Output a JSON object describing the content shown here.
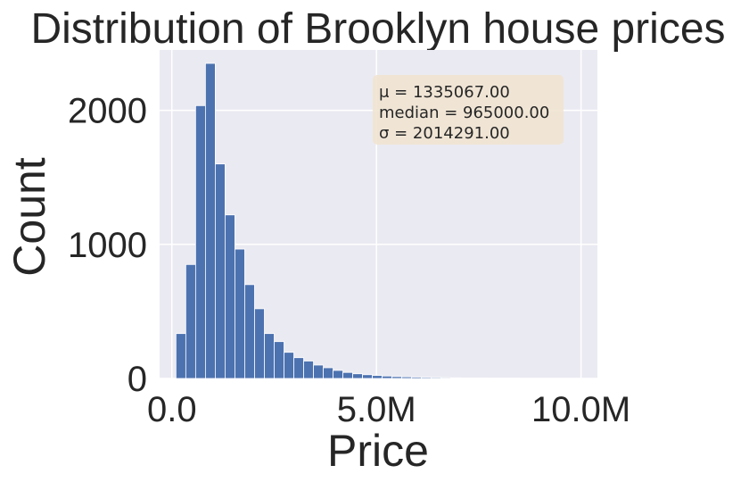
{
  "colors": {
    "plot_background": "#eaeaf2",
    "bar_fill": "#4c72b0",
    "grid": "#ffffff",
    "stats_box_fill": "#f1e4d1",
    "text": "#262626"
  },
  "stats_box": {
    "line1": "μ = 1335067.00",
    "line2": "median = 965000.00",
    "line3": "σ = 2014291.00"
  },
  "chart_data": {
    "type": "bar",
    "title": "Distribution of Brooklyn house prices",
    "xlabel": "Price",
    "ylabel": "Count",
    "xlim": [
      -300000,
      10400000
    ],
    "ylim": [
      0,
      2450
    ],
    "x_ticks": [
      0,
      5000000,
      10000000
    ],
    "x_tick_labels": [
      "0.0",
      "5.0M",
      "10.0M"
    ],
    "y_ticks": [
      0,
      1000,
      2000
    ],
    "y_tick_labels": [
      "0",
      "1000",
      "2000"
    ],
    "grid": true,
    "bin_width": 240000,
    "bin_start": 100000,
    "values": [
      335,
      850,
      2035,
      2350,
      1600,
      1220,
      965,
      700,
      520,
      335,
      275,
      195,
      155,
      130,
      100,
      80,
      60,
      45,
      35,
      28,
      22,
      18,
      14,
      12,
      10,
      8,
      7,
      6,
      5,
      4,
      3,
      3,
      2,
      2,
      2,
      1,
      1,
      1,
      1,
      1,
      1
    ]
  }
}
